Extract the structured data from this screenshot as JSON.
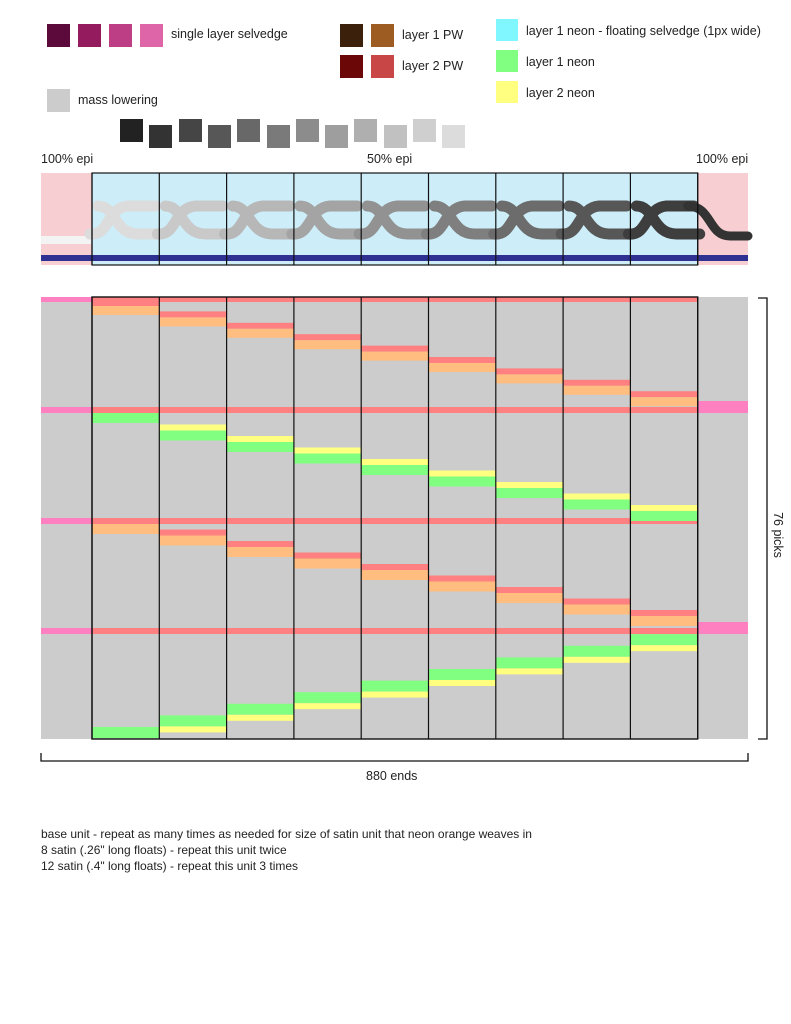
{
  "legend": {
    "selvedge": {
      "label": "single layer selvedge",
      "colors": [
        "#5c0a3c",
        "#941c5e",
        "#bd3e84",
        "#de66a8"
      ]
    },
    "pw": [
      {
        "label": "layer 1 PW",
        "colors": [
          "#3b210b",
          "#9c5c22"
        ]
      },
      {
        "label": "layer 2 PW",
        "colors": [
          "#6b0707",
          "#c94646"
        ]
      }
    ],
    "neon": [
      {
        "label": "layer 1 neon - floating selvedge (1px wide)",
        "color": "#80f7ff"
      },
      {
        "label": "layer 1 neon",
        "color": "#80ff80"
      },
      {
        "label": "layer 2 neon",
        "color": "#ffff80"
      }
    ],
    "mass_lowering": {
      "label": "mass lowering",
      "color": "#cccccc",
      "gradient": [
        "#222222",
        "#333333",
        "#454545",
        "#575757",
        "#686868",
        "#7a7a7a",
        "#8c8c8c",
        "#9e9e9e",
        "#afafaf",
        "#c1c1c1",
        "#cfcfcf",
        "#dcdcdc"
      ]
    }
  },
  "profile": {
    "labels": {
      "left": "100% epi",
      "center": "50% epi",
      "right": "100% epi"
    },
    "section_count": 9,
    "stroke_colors": [
      "#dcdcdc",
      "#c9c9c9",
      "#b7b7b7",
      "#a4a4a4",
      "#929292",
      "#7f7f7f",
      "#6c6c6c",
      "#575757",
      "#3e3e3e"
    ],
    "end_color": "#333333",
    "base_color": "#2e3192",
    "side_color": "#f7cfd2",
    "center_color": "#cdeef9"
  },
  "draft": {
    "sections": 9,
    "picks_label": "76 picks",
    "ends_label": "880 ends",
    "bg_color": "#cccccc",
    "colors": {
      "red": "#fe8080",
      "orange": "#ffbd80",
      "green": "#80ff80",
      "yellow": "#ffff80",
      "pink": "#ff80c0"
    }
  },
  "notes": [
    "base unit - repeat as many times as needed for size of satin unit that neon orange weaves in",
    "8 satin (.26\" long floats) - repeat this unit twice",
    "12 satin (.4\" long floats) - repeat this unit 3 times"
  ]
}
